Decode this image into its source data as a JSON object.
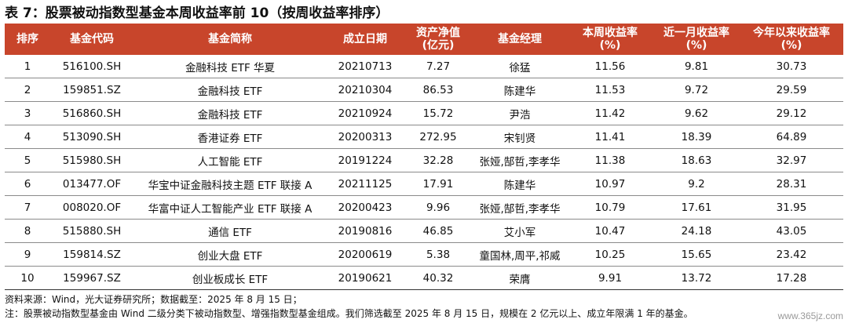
{
  "title": "表 7：股票被动指数型基金本周收益率前 10（按周收益率排序）",
  "table": {
    "headers": [
      "排序",
      "基金代码",
      "基金简称",
      "成立日期",
      "资产净值\n(亿元)",
      "基金经理",
      "本周收益率\n(%)",
      "近一月收益率\n(%)",
      "今年以来收益率\n(%)"
    ],
    "rows": [
      [
        "1",
        "516100.SH",
        "金融科技 ETF 华夏",
        "20210713",
        "7.27",
        "徐猛",
        "11.56",
        "9.81",
        "30.73"
      ],
      [
        "2",
        "159851.SZ",
        "金融科技 ETF",
        "20210304",
        "86.53",
        "陈建华",
        "11.53",
        "9.72",
        "29.59"
      ],
      [
        "3",
        "516860.SH",
        "金融科技 ETF",
        "20210924",
        "15.72",
        "尹浩",
        "11.42",
        "9.62",
        "29.12"
      ],
      [
        "4",
        "513090.SH",
        "香港证券 ETF",
        "20200313",
        "272.95",
        "宋钊贤",
        "11.41",
        "18.39",
        "64.89"
      ],
      [
        "5",
        "515980.SH",
        "人工智能 ETF",
        "20191224",
        "32.28",
        "张娅,郜哲,李孝华",
        "11.38",
        "18.63",
        "32.97"
      ],
      [
        "6",
        "013477.OF",
        "华宝中证金融科技主题 ETF 联接 A",
        "20211125",
        "17.91",
        "陈建华",
        "10.97",
        "9.2",
        "28.31"
      ],
      [
        "7",
        "008020.OF",
        "华富中证人工智能产业 ETF 联接 A",
        "20200423",
        "9.96",
        "张娅,郜哲,李孝华",
        "10.79",
        "17.61",
        "31.95"
      ],
      [
        "8",
        "515880.SH",
        "通信 ETF",
        "20190816",
        "46.85",
        "艾小军",
        "10.47",
        "24.18",
        "43.05"
      ],
      [
        "9",
        "159814.SZ",
        "创业大盘 ETF",
        "20200619",
        "5.38",
        "童国林,周平,祁威",
        "10.25",
        "15.65",
        "23.42"
      ],
      [
        "10",
        "159967.SZ",
        "创业板成长 ETF",
        "20190621",
        "40.32",
        "荣膺",
        "9.91",
        "13.72",
        "17.28"
      ]
    ]
  },
  "notes": {
    "source": "资料来源：Wind，光大证券研究所；数据截至：2025 年 8 月 15 日；",
    "note": "注：股票被动指数型基金由 Wind 二级分类下被动指数型、增强指数型基金组成。我们筛选截至 2025 年 8 月 15 日，规模在 2 亿元以上、成立年限满 1 年的基金。"
  },
  "watermark": "www.365jz.com",
  "colors": {
    "header_bg": "#c8452b",
    "header_text": "#ffffff"
  }
}
